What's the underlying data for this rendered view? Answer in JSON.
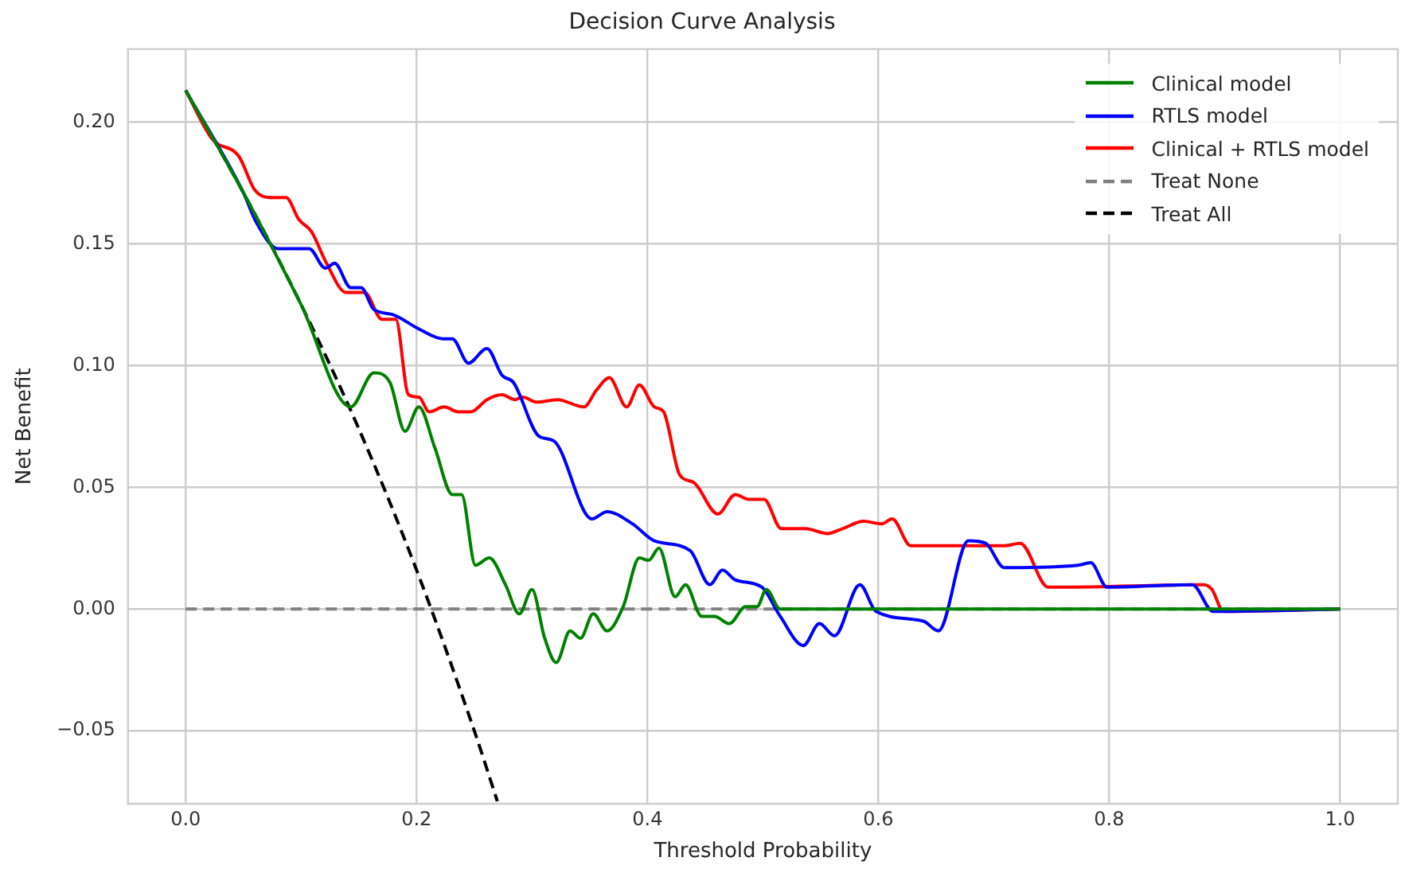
{
  "chart_data": {
    "type": "line",
    "title": "Decision Curve Analysis",
    "xlabel": "Threshold Probability",
    "ylabel": "Net Benefit",
    "xlim": [
      -0.05,
      1.05
    ],
    "ylim": [
      -0.08,
      0.23
    ],
    "xticks": [
      {
        "value": 0,
        "label": "0.0"
      },
      {
        "value": 0.2,
        "label": "0.2"
      },
      {
        "value": 0.4,
        "label": "0.4"
      },
      {
        "value": 0.6,
        "label": "0.6"
      },
      {
        "value": 0.8,
        "label": "0.8"
      },
      {
        "value": 1,
        "label": "1.0"
      }
    ],
    "yticks": [
      {
        "value": -0.05,
        "label": "−0.05"
      },
      {
        "value": 0,
        "label": "0.00"
      },
      {
        "value": 0.05,
        "label": "0.05"
      },
      {
        "value": 0.1,
        "label": "0.10"
      },
      {
        "value": 0.15,
        "label": "0.15"
      },
      {
        "value": 0.2,
        "label": "0.20"
      }
    ],
    "grid": true,
    "legend": "top right",
    "marker": "none",
    "series": [
      {
        "name": "Clinical model",
        "color": "#008000",
        "line_style": "solid",
        "x": [
          0,
          0.05,
          0.1,
          0.143,
          0.163,
          0.177,
          0.19,
          0.202,
          0.216,
          0.231,
          0.239,
          0.251,
          0.263,
          0.277,
          0.289,
          0.3,
          0.311,
          0.321,
          0.333,
          0.342,
          0.353,
          0.365,
          0.379,
          0.393,
          0.401,
          0.41,
          0.424,
          0.433,
          0.447,
          0.458,
          0.471,
          0.485,
          0.495,
          0.503,
          0.515,
          1
        ],
        "values": [
          0.213,
          0.171,
          0.125,
          0.083,
          0.097,
          0.093,
          0.073,
          0.083,
          0.066,
          0.047,
          0.047,
          0.018,
          0.021,
          0.01,
          -0.002,
          0.008,
          -0.012,
          -0.022,
          -0.009,
          -0.012,
          -0.002,
          -0.009,
          0.001,
          0.021,
          0.02,
          0.025,
          0.005,
          0.01,
          -0.003,
          -0.003,
          -0.006,
          0.001,
          0.001,
          0.008,
          0,
          0
        ]
      },
      {
        "name": "RTLS model",
        "color": "#0000ff",
        "line_style": "solid",
        "x": [
          0,
          0.05,
          0.061,
          0.08,
          0.107,
          0.121,
          0.129,
          0.143,
          0.152,
          0.163,
          0.179,
          0.202,
          0.223,
          0.231,
          0.245,
          0.261,
          0.274,
          0.284,
          0.306,
          0.319,
          0.352,
          0.365,
          0.387,
          0.406,
          0.437,
          0.454,
          0.465,
          0.476,
          0.499,
          0.515,
          0.535,
          0.549,
          0.562,
          0.584,
          0.598,
          0.639,
          0.652,
          0.678,
          0.693,
          0.709,
          0.773,
          0.784,
          0.798,
          0.872,
          0.89,
          1
        ],
        "values": [
          0.213,
          0.171,
          0.159,
          0.148,
          0.148,
          0.14,
          0.142,
          0.132,
          0.132,
          0.123,
          0.121,
          0.115,
          0.111,
          0.111,
          0.101,
          0.107,
          0.096,
          0.093,
          0.071,
          0.069,
          0.037,
          0.04,
          0.035,
          0.028,
          0.024,
          0.01,
          0.016,
          0.012,
          0.009,
          -0.003,
          -0.015,
          -0.006,
          -0.011,
          0.01,
          -0.001,
          -0.005,
          -0.009,
          0.028,
          0.027,
          0.017,
          0.018,
          0.019,
          0.009,
          0.01,
          -0.001,
          0
        ]
      },
      {
        "name": "Clinical + RTLS model",
        "color": "#ff0000",
        "line_style": "solid",
        "x": [
          0,
          0.023,
          0.046,
          0.06,
          0.073,
          0.087,
          0.098,
          0.109,
          0.122,
          0.139,
          0.155,
          0.17,
          0.182,
          0.193,
          0.202,
          0.211,
          0.224,
          0.236,
          0.247,
          0.261,
          0.274,
          0.285,
          0.292,
          0.304,
          0.322,
          0.345,
          0.356,
          0.367,
          0.382,
          0.393,
          0.406,
          0.414,
          0.428,
          0.44,
          0.461,
          0.476,
          0.488,
          0.501,
          0.516,
          0.537,
          0.556,
          0.569,
          0.587,
          0.603,
          0.612,
          0.628,
          0.709,
          0.723,
          0.747,
          0.759,
          0.882,
          0.889,
          0.899,
          1
        ],
        "values": [
          0.213,
          0.193,
          0.186,
          0.172,
          0.169,
          0.169,
          0.16,
          0.155,
          0.142,
          0.13,
          0.13,
          0.119,
          0.119,
          0.088,
          0.087,
          0.081,
          0.083,
          0.081,
          0.081,
          0.086,
          0.088,
          0.086,
          0.087,
          0.085,
          0.086,
          0.083,
          0.09,
          0.095,
          0.083,
          0.092,
          0.083,
          0.081,
          0.055,
          0.052,
          0.039,
          0.047,
          0.045,
          0.045,
          0.033,
          0.033,
          0.031,
          0.033,
          0.036,
          0.035,
          0.037,
          0.026,
          0.026,
          0.027,
          0.009,
          0.009,
          0.01,
          0.008,
          -0.001,
          0
        ]
      },
      {
        "name": "Treat None",
        "color": "#808080",
        "line_style": "dashed",
        "x": [
          0,
          1
        ],
        "values": [
          0,
          0
        ]
      },
      {
        "name": "Treat All",
        "color": "#000000",
        "line_style": "dashed",
        "x": [
          0,
          0.05,
          0.1,
          0.15,
          0.2,
          0.25,
          0.27
        ],
        "values": [
          0.213,
          0.171,
          0.125,
          0.074,
          0.016,
          -0.05,
          -0.079
        ]
      }
    ]
  }
}
